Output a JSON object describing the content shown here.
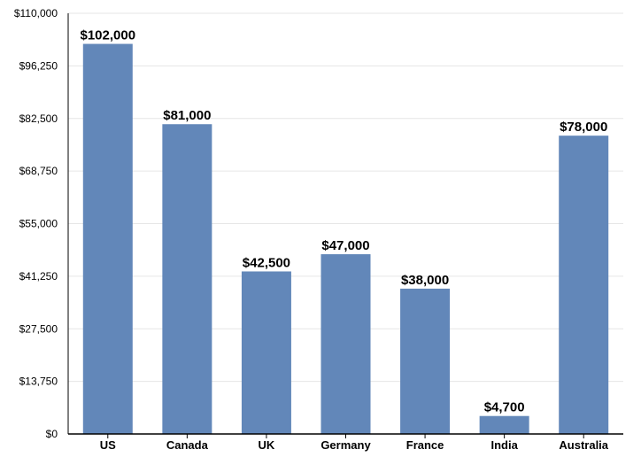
{
  "chart_data": {
    "type": "bar",
    "title": "",
    "xlabel": "",
    "ylabel": "",
    "categories": [
      "US",
      "Canada",
      "UK",
      "Germany",
      "France",
      "India",
      "Australia"
    ],
    "values": [
      102000,
      81000,
      42500,
      47000,
      38000,
      4700,
      78000
    ],
    "data_labels": [
      "$102,000",
      "$81,000",
      "$42,500",
      "$47,000",
      "$38,000",
      "$4,700",
      "$78,000"
    ],
    "ylim": [
      0,
      110000
    ],
    "yticks": [
      0,
      13750,
      27500,
      41250,
      55000,
      68750,
      82500,
      96250,
      110000
    ],
    "ytick_labels": [
      "$0",
      "$13,750",
      "$27,500",
      "$41,250",
      "$55,000",
      "$68,750",
      "$82,500",
      "$96,250",
      "$110,000"
    ],
    "grid": true,
    "legend": "none",
    "colors": {
      "bar": "#6287b9",
      "grid": "#e6e6e6",
      "axis": "#000000"
    }
  }
}
